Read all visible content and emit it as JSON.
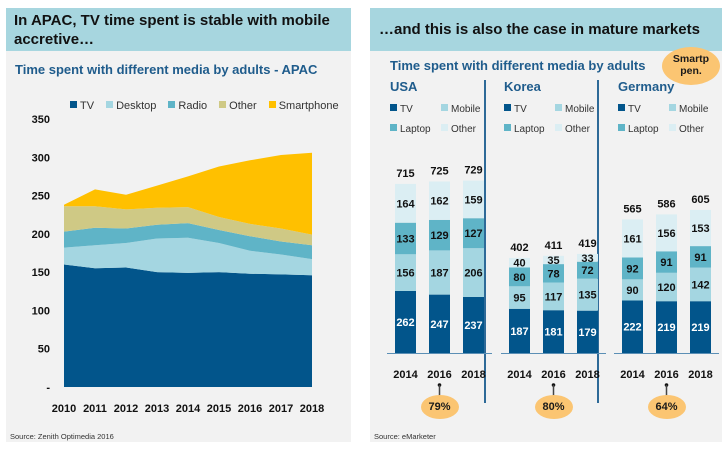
{
  "left": {
    "header": "In APAC, TV time spent is stable with mobile accretive…",
    "subtitle": "Time spent with different media by adults - APAC",
    "source": "Source: Zenith Optimedia 2016"
  },
  "right": {
    "header": "…and this is also the case in mature markets",
    "subtitle": "Time spent with different media by adults",
    "badge_label": "Smartp pen.",
    "source": "Source: eMarketer"
  },
  "colors": {
    "TV": "#02558b",
    "Desktop": "#a4d6e1",
    "Radio": "#5fb4c7",
    "Other": "#cfc985",
    "Smartphone": "#ffc000",
    "Mobile": "#a4d6e1",
    "Laptop": "#5fb4c7",
    "OtherBar": "#dbeef3",
    "header_bg": "#a7d6df",
    "title_blue": "#1f5c8c",
    "badge": "#fbc572"
  },
  "chart_data": [
    {
      "type": "area",
      "stacked": true,
      "title": "Time spent with different media by adults - APAC",
      "xlabel": "",
      "ylabel": "",
      "x": [
        "2010",
        "2011",
        "2012",
        "2013",
        "2014",
        "2015",
        "2016",
        "2017",
        "2018"
      ],
      "ylim": [
        0,
        350
      ],
      "yticks": [
        "-",
        "50",
        "100",
        "150",
        "200",
        "250",
        "300",
        "350"
      ],
      "legend_position": "top",
      "series": [
        {
          "name": "TV",
          "values": [
            160,
            155,
            156,
            150,
            149,
            150,
            148,
            147,
            146
          ]
        },
        {
          "name": "Desktop",
          "values": [
            22,
            30,
            32,
            44,
            46,
            38,
            30,
            26,
            21
          ]
        },
        {
          "name": "Radio",
          "values": [
            21,
            23,
            19,
            18,
            19,
            17,
            19,
            17,
            18
          ]
        },
        {
          "name": "Other",
          "values": [
            33,
            28,
            25,
            22,
            21,
            17,
            16,
            17,
            14
          ]
        },
        {
          "name": "Smartphone",
          "values": [
            2,
            22,
            19,
            29,
            40,
            66,
            83,
            96,
            107
          ]
        }
      ]
    },
    {
      "type": "bar",
      "stacked": true,
      "title": "USA",
      "categories": [
        "2014",
        "2016",
        "2018"
      ],
      "legend": [
        "TV",
        "Mobile",
        "Laptop",
        "Other"
      ],
      "series": [
        {
          "name": "TV",
          "values": [
            262,
            247,
            237
          ]
        },
        {
          "name": "Mobile",
          "values": [
            156,
            187,
            206
          ]
        },
        {
          "name": "Laptop",
          "values": [
            133,
            129,
            127
          ]
        },
        {
          "name": "Other",
          "values": [
            164,
            162,
            159
          ]
        }
      ],
      "totals": [
        715,
        725,
        729
      ],
      "smartphone_penetration": "79%"
    },
    {
      "type": "bar",
      "stacked": true,
      "title": "Korea",
      "categories": [
        "2014",
        "2016",
        "2018"
      ],
      "legend": [
        "TV",
        "Mobile",
        "Laptop",
        "Other"
      ],
      "series": [
        {
          "name": "TV",
          "values": [
            187,
            181,
            179
          ]
        },
        {
          "name": "Mobile",
          "values": [
            95,
            117,
            135
          ]
        },
        {
          "name": "Laptop",
          "values": [
            80,
            78,
            72
          ]
        },
        {
          "name": "Other",
          "values": [
            40,
            35,
            33
          ]
        }
      ],
      "totals": [
        402,
        411,
        419
      ],
      "smartphone_penetration": "80%"
    },
    {
      "type": "bar",
      "stacked": true,
      "title": "Germany",
      "categories": [
        "2014",
        "2016",
        "2018"
      ],
      "legend": [
        "TV",
        "Mobile",
        "Laptop",
        "Other"
      ],
      "series": [
        {
          "name": "TV",
          "values": [
            222,
            219,
            219
          ]
        },
        {
          "name": "Mobile",
          "values": [
            90,
            120,
            142
          ]
        },
        {
          "name": "Laptop",
          "values": [
            92,
            91,
            91
          ]
        },
        {
          "name": "Other",
          "values": [
            161,
            156,
            153
          ]
        }
      ],
      "totals": [
        565,
        586,
        605
      ],
      "smartphone_penetration": "64%"
    }
  ]
}
